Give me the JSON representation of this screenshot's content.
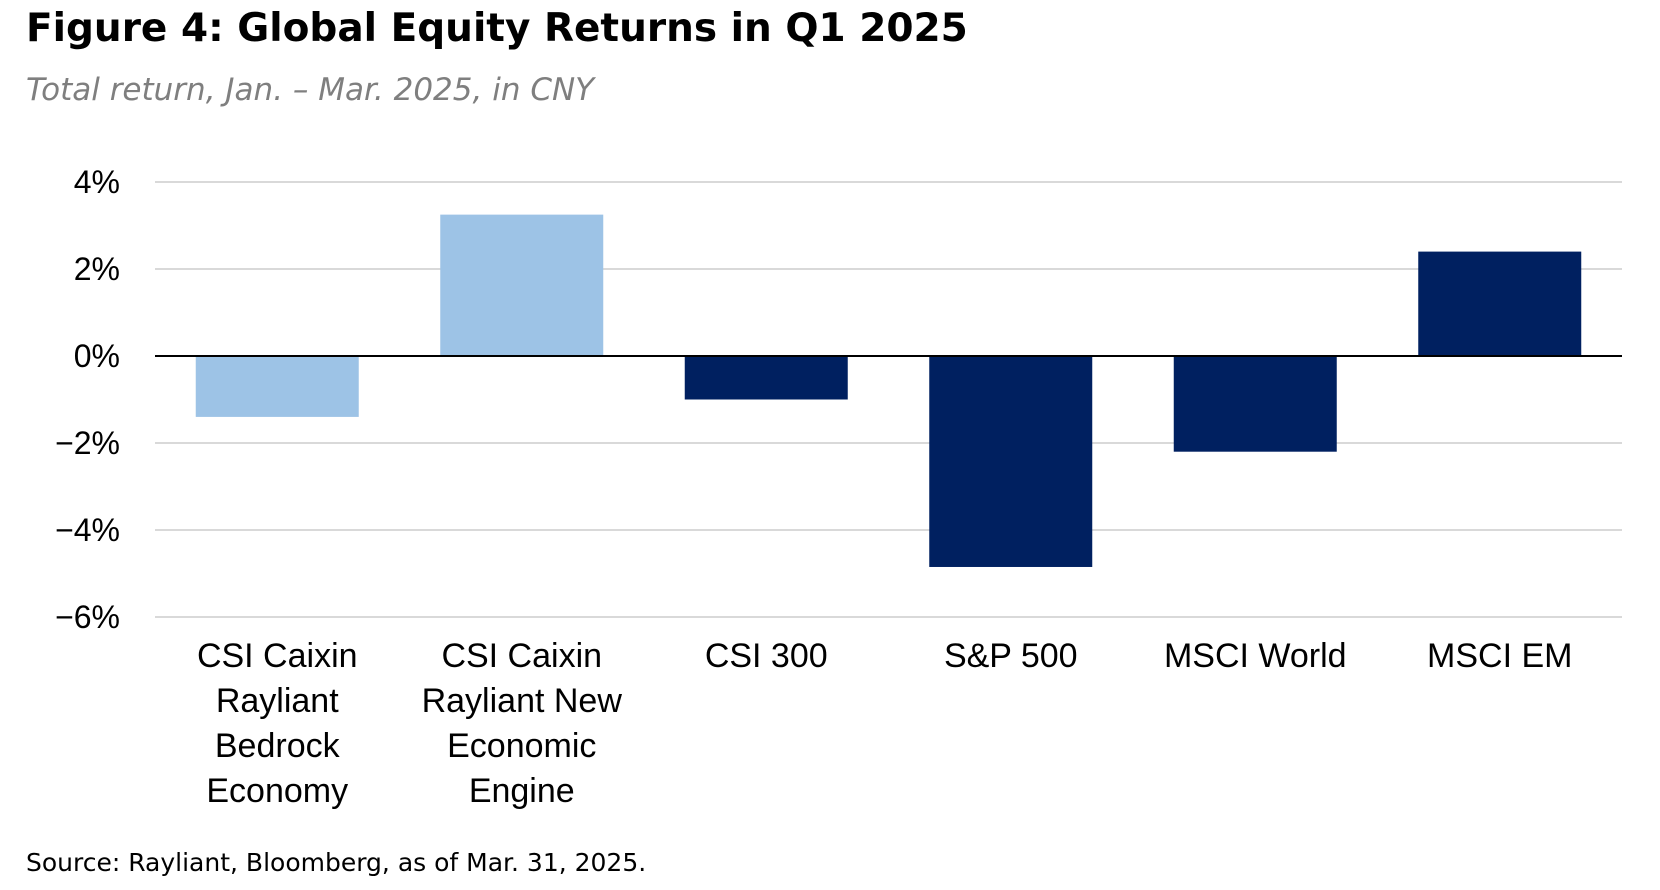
{
  "chart_data": {
    "type": "bar",
    "title": "Figure 4: Global Equity Returns in Q1 2025",
    "subtitle": "Total return, Jan. – Mar. 2025, in CNY",
    "categories": [
      [
        "CSI Caixin",
        "Rayliant",
        "Bedrock",
        "Economy"
      ],
      [
        "CSI Caixin",
        "Rayliant New",
        "Economic",
        "Engine"
      ],
      [
        "CSI 300"
      ],
      [
        "S&P 500"
      ],
      [
        "MSCI World"
      ],
      [
        "MSCI EM"
      ]
    ],
    "values": [
      -1.4,
      3.25,
      -1.0,
      -4.85,
      -2.2,
      2.4
    ],
    "bar_colors": [
      "#9dc3e6",
      "#9dc3e6",
      "#002060",
      "#002060",
      "#002060",
      "#002060"
    ],
    "ylim": [
      -6,
      4
    ],
    "yticks": [
      4,
      2,
      0,
      -2,
      -4,
      -6
    ],
    "ytick_labels": [
      "4%",
      "2%",
      "0%",
      "−2%",
      "−4%",
      "−6%"
    ],
    "grid": true,
    "xlabel": "",
    "ylabel": ""
  },
  "source": "Source: Rayliant, Bloomberg, as of Mar. 31, 2025."
}
